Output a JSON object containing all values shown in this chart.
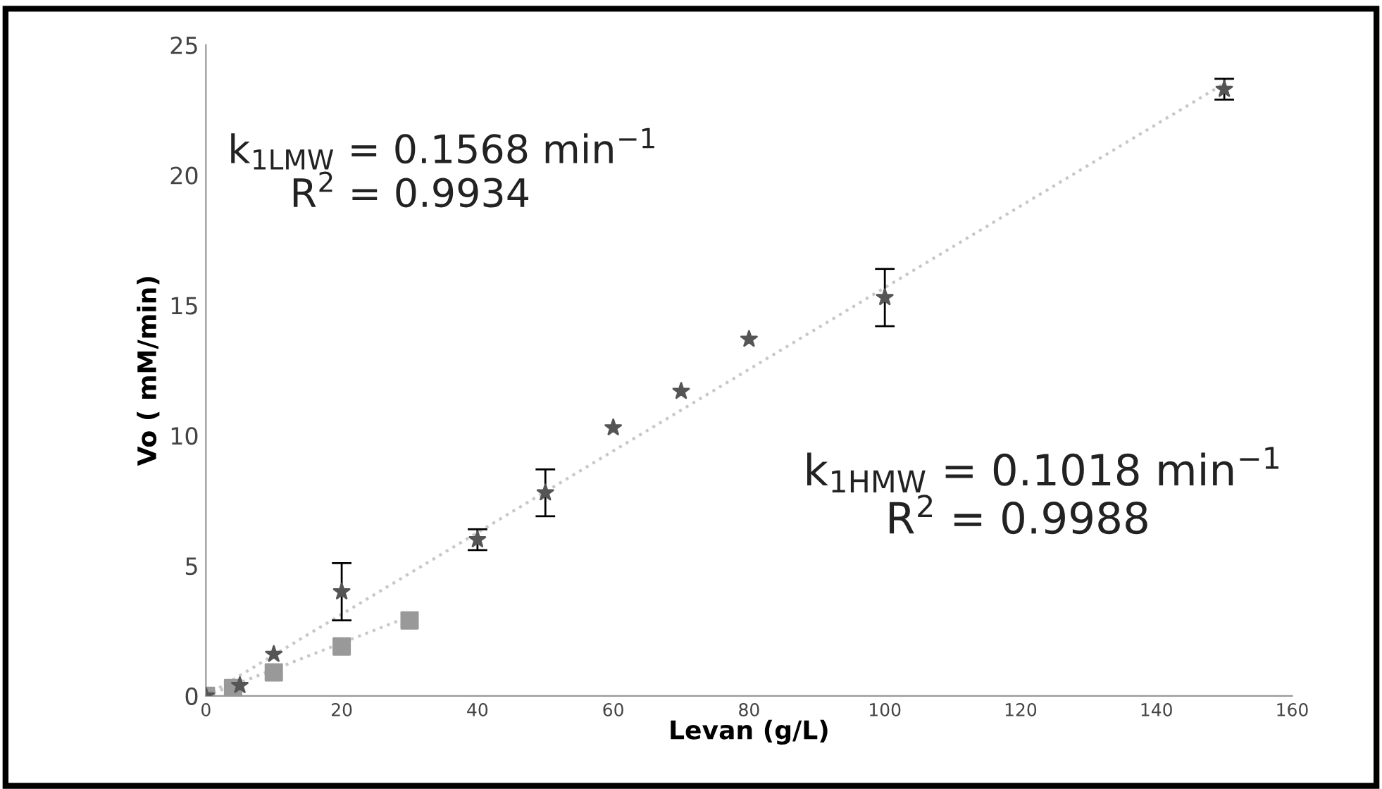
{
  "chart_data": {
    "type": "scatter",
    "xlabel": "Levan (g/L)",
    "ylabel": "Vo ( mM/min)",
    "xlim": [
      0,
      160
    ],
    "xticks": [
      0,
      20,
      40,
      60,
      80,
      100,
      120,
      140,
      160
    ],
    "ylim": [
      0,
      25
    ],
    "yticks": [
      0,
      5,
      10,
      15,
      20,
      25
    ],
    "grid": false,
    "legend": false,
    "series": [
      {
        "type": "line",
        "color": "#c8c8c8",
        "marker": "none",
        "line_style": "dotted",
        "x": [
          0,
          150
        ],
        "values": [
          0,
          23.52
        ]
      },
      {
        "type": "line",
        "color": "#c8c8c8",
        "marker": "none",
        "line_style": "dotted",
        "x": [
          0,
          30
        ],
        "values": [
          0,
          3.05
        ]
      },
      {
        "color": "#555555",
        "marker": "star",
        "x": [
          0,
          5,
          10,
          20,
          40,
          50,
          60,
          70,
          80,
          100,
          150
        ],
        "values": [
          0,
          0.4,
          1.6,
          4.0,
          6.0,
          7.8,
          10.3,
          11.7,
          13.7,
          15.3,
          23.3
        ],
        "errors": [
          null,
          null,
          null,
          1.1,
          0.4,
          0.9,
          null,
          null,
          null,
          1.1,
          0.4
        ]
      },
      {
        "color": "#999999",
        "marker": "square",
        "x": [
          0,
          4,
          10,
          20,
          30
        ],
        "values": [
          0,
          0.3,
          0.9,
          1.9,
          2.9
        ]
      }
    ],
    "annotations": [
      {
        "text": "k$_{1LMW}$ = 0.1568 min$^{−1}$\n     R$^{2}$ = 0.9934"
      },
      {
        "text": "k$_{1HMW}$ = 0.1018 min$^{−1}$\n      R$^{2}$ = 0.9988"
      }
    ]
  }
}
